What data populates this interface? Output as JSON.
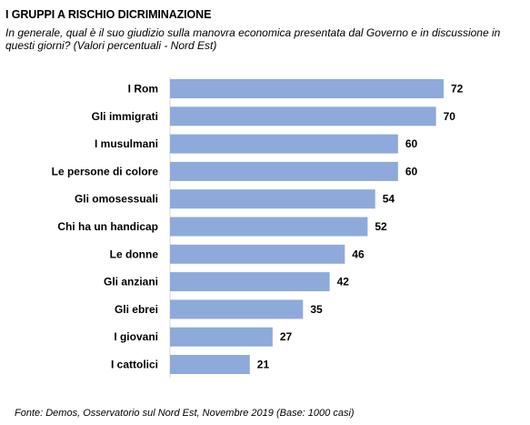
{
  "header": {
    "title": "I GRUPPI A RISCHIO DICRIMINAZIONE",
    "subtitle": "In generale, qual è il suo giudizio sulla manovra economica presentata dal Governo e in discussione in questi giorni? (Valori percentuali - Nord Est)"
  },
  "footer": {
    "source": "Fonte: Demos, Osservatorio sul Nord Est, Novembre 2019 (Base: 1000  casi)"
  },
  "chart_data": {
    "type": "bar",
    "orientation": "horizontal",
    "categories": [
      "I Rom",
      "Gli immigrati",
      "I musulmani",
      "Le persone di colore",
      "Gli omosessuali",
      "Chi ha un handicap",
      "Le donne",
      "Gli anziani",
      "Gli ebrei",
      "I giovani",
      "I cattolici"
    ],
    "values": [
      72,
      70,
      60,
      60,
      54,
      52,
      46,
      42,
      35,
      27,
      21
    ],
    "xlim": [
      0,
      72
    ],
    "bar_color": "#8eaadb",
    "grid": false,
    "legend": false
  }
}
